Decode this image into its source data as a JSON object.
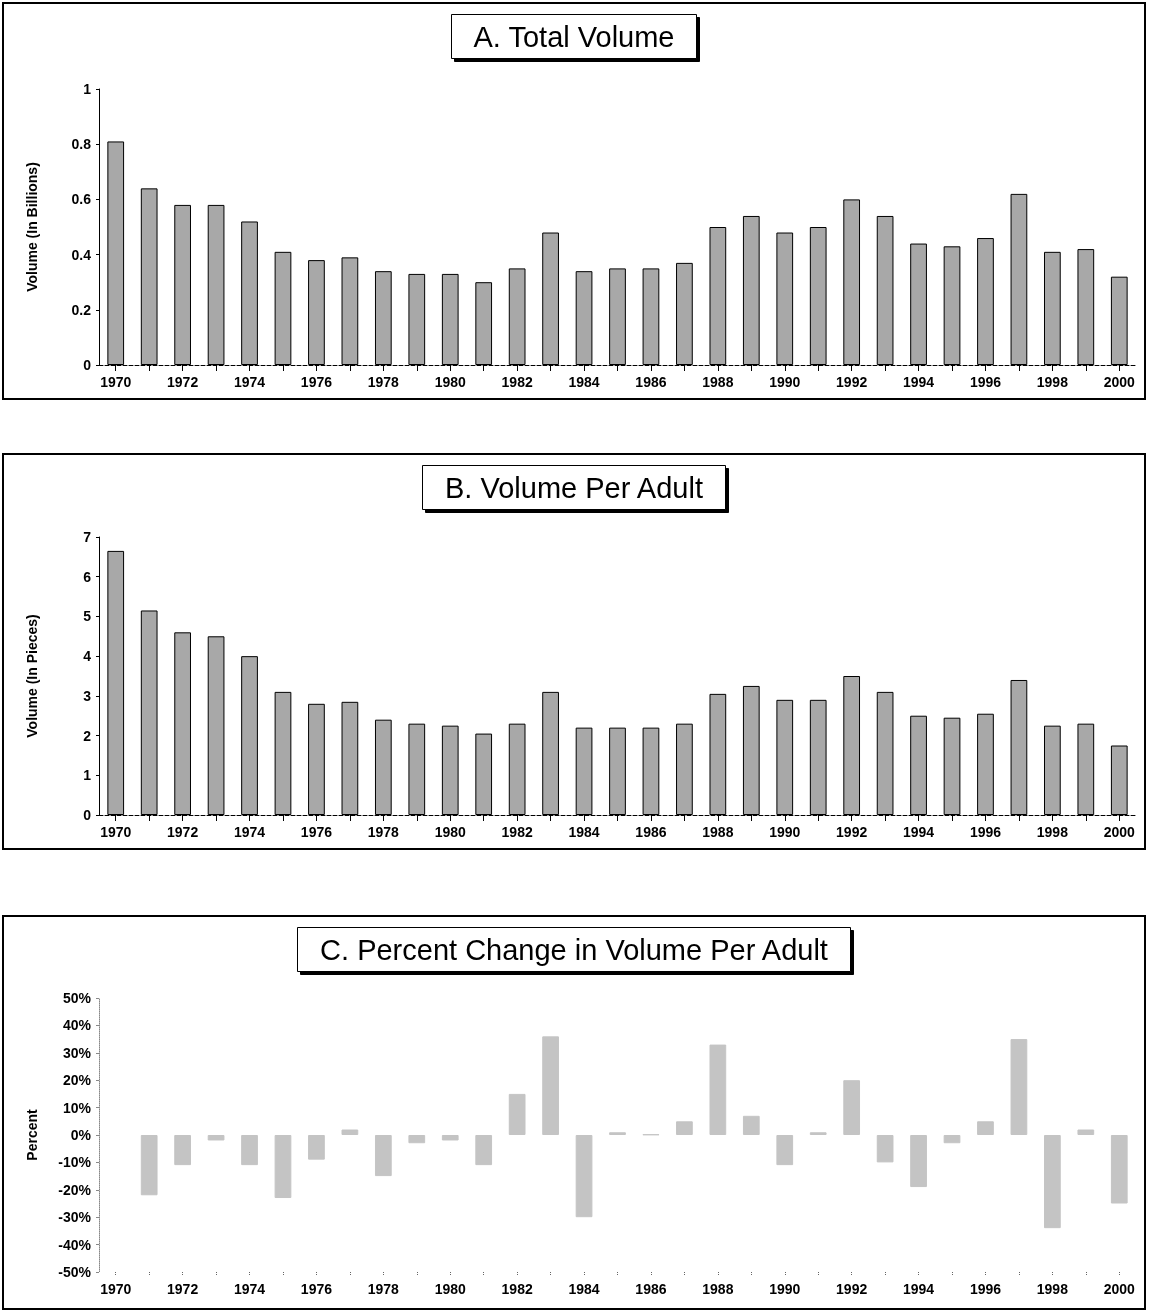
{
  "chart_data": [
    {
      "type": "bar",
      "title": "A. Total Volume",
      "ylabel": "Volume (In Billions)",
      "categories": [
        "1970",
        null,
        "1972",
        null,
        "1974",
        null,
        "1976",
        null,
        "1978",
        null,
        "1980",
        null,
        "1982",
        null,
        "1984",
        null,
        "1986",
        null,
        "1988",
        null,
        "1990",
        null,
        "1992",
        null,
        "1994",
        null,
        "1996",
        null,
        "1998",
        null,
        "2000"
      ],
      "values": [
        0.81,
        0.64,
        0.58,
        0.58,
        0.52,
        0.41,
        0.38,
        0.39,
        0.34,
        0.33,
        0.33,
        0.3,
        0.35,
        0.48,
        0.34,
        0.35,
        0.35,
        0.37,
        0.5,
        0.54,
        0.48,
        0.5,
        0.6,
        0.54,
        0.44,
        0.43,
        0.46,
        0.62,
        0.41,
        0.42,
        0.32
      ],
      "color": "#a8a8a8",
      "ylim": [
        0,
        1
      ],
      "yticks": [
        0,
        0.2,
        0.4,
        0.6,
        0.8,
        1
      ]
    },
    {
      "type": "bar",
      "title": "B. Volume Per Adult",
      "ylabel": "Volume (In Pieces)",
      "categories": [
        "1970",
        null,
        "1972",
        null,
        "1974",
        null,
        "1976",
        null,
        "1978",
        null,
        "1980",
        null,
        "1982",
        null,
        "1984",
        null,
        "1986",
        null,
        "1988",
        null,
        "1990",
        null,
        "1992",
        null,
        "1994",
        null,
        "1996",
        null,
        "1998",
        null,
        "2000"
      ],
      "values": [
        6.65,
        5.15,
        4.6,
        4.5,
        4.0,
        3.1,
        2.8,
        2.85,
        2.4,
        2.3,
        2.25,
        2.05,
        2.3,
        3.1,
        2.2,
        2.2,
        2.2,
        2.3,
        3.05,
        3.25,
        2.9,
        2.9,
        3.5,
        3.1,
        2.5,
        2.45,
        2.55,
        3.4,
        2.25,
        2.3,
        1.75
      ],
      "color": "#a8a8a8",
      "ylim": [
        0,
        7
      ],
      "yticks": [
        0,
        1,
        2,
        3,
        4,
        5,
        6,
        7
      ]
    },
    {
      "type": "bar",
      "title": "C. Percent Change in Volume Per Adult",
      "ylabel": "Percent",
      "categories": [
        "1970",
        null,
        "1972",
        null,
        "1974",
        null,
        "1976",
        null,
        "1978",
        null,
        "1980",
        null,
        "1982",
        null,
        "1984",
        null,
        "1986",
        null,
        "1988",
        null,
        "1990",
        null,
        "1992",
        null,
        "1994",
        null,
        "1996",
        null,
        "1998",
        null,
        "2000"
      ],
      "values": [
        null,
        -22,
        -11,
        -2,
        -11,
        -23,
        -9,
        2,
        -15,
        -3,
        -2,
        -11,
        15,
        36,
        -30,
        1,
        0.2,
        5,
        33,
        7,
        -11,
        1,
        20,
        -10,
        -19,
        -3,
        5,
        35,
        -34,
        2,
        -25
      ],
      "color": "#c4c4c4",
      "ylim": [
        -50,
        50
      ],
      "yticks": [
        {
          "value": -50,
          "label": "-50%"
        },
        {
          "value": -40,
          "label": "-40%"
        },
        {
          "value": -30,
          "label": "-30%"
        },
        {
          "value": -20,
          "label": "-20%"
        },
        {
          "value": -10,
          "label": "-10%"
        },
        {
          "value": 0,
          "label": "0%"
        },
        {
          "value": 10,
          "label": "10%"
        },
        {
          "value": 20,
          "label": "20%"
        },
        {
          "value": 30,
          "label": "30%"
        },
        {
          "value": 40,
          "label": "40%"
        },
        {
          "value": 50,
          "label": "50%"
        }
      ]
    }
  ]
}
